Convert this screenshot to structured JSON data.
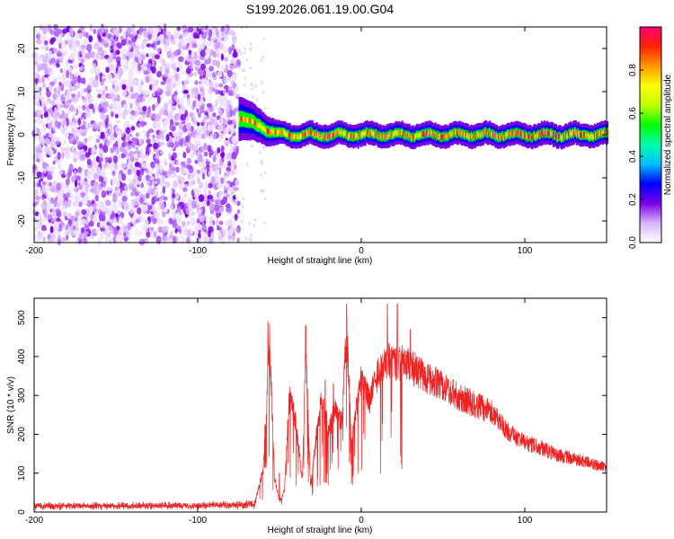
{
  "title": "S199.2026.061.19.00.G04",
  "chart_data": [
    {
      "type": "heatmap",
      "name": "spectrogram",
      "xlabel": "Height of straight line (km)",
      "ylabel": "Frequency (Hz)",
      "xlim": [
        -200,
        150
      ],
      "ylim": [
        -25,
        25
      ],
      "xticks": [
        -200,
        -100,
        0,
        100
      ],
      "xtick_labels": [
        "-200",
        "-100",
        "0",
        "100"
      ],
      "yticks": [
        20,
        10,
        0,
        -10,
        -20
      ],
      "ytick_labels": [
        "20",
        "10",
        "0",
        "-10",
        "-20"
      ],
      "noise_region_km": [
        -200,
        -75
      ],
      "signal_start_km": -75,
      "signal_frequency_hz": 0,
      "signal_start_offset_hz": 4,
      "colorbar": {
        "label": "Normalized spectral amplitude",
        "range": [
          0.0,
          1.0
        ],
        "ticks": [
          "0.0",
          "0.2",
          "0.4",
          "0.6",
          "0.8"
        ],
        "colors": [
          "#ffffff",
          "#d9b3ff",
          "#7a00e6",
          "#0000ff",
          "#00bfff",
          "#00ffaa",
          "#00ff00",
          "#bfff00",
          "#ffff00",
          "#ff9900",
          "#ff2200",
          "#ff0077"
        ]
      }
    },
    {
      "type": "line",
      "name": "snr",
      "xlabel": "Height of straight line (km)",
      "ylabel": "SNR (10 * v/v)",
      "xlim": [
        -200,
        150
      ],
      "ylim": [
        0,
        550
      ],
      "xticks": [
        -200,
        -100,
        0,
        100
      ],
      "xtick_labels": [
        "-200",
        "-100",
        "0",
        "100"
      ],
      "yticks": [
        0,
        100,
        200,
        300,
        400,
        500
      ],
      "ytick_labels": [
        "0",
        "100",
        "200",
        "300",
        "400",
        "500"
      ],
      "color": "#ee2222",
      "series": [
        {
          "name": "SNR",
          "envelope": [
            [
              -200,
              20
            ],
            [
              -170,
              22
            ],
            [
              -140,
              23
            ],
            [
              -110,
              22
            ],
            [
              -80,
              24
            ],
            [
              -65,
              28
            ],
            [
              -60,
              120
            ],
            [
              -56,
              490
            ],
            [
              -53,
              100
            ],
            [
              -50,
              30
            ],
            [
              -47,
              60
            ],
            [
              -44,
              330
            ],
            [
              -40,
              260
            ],
            [
              -36,
              90
            ],
            [
              -34,
              480
            ],
            [
              -31,
              70
            ],
            [
              -28,
              200
            ],
            [
              -24,
              330
            ],
            [
              -20,
              230
            ],
            [
              -16,
              300
            ],
            [
              -12,
              260
            ],
            [
              -9,
              530
            ],
            [
              -6,
              200
            ],
            [
              -3,
              310
            ],
            [
              0,
              380
            ],
            [
              5,
              320
            ],
            [
              10,
              400
            ],
            [
              15,
              440
            ],
            [
              20,
              430
            ],
            [
              25,
              430
            ],
            [
              30,
              420
            ],
            [
              40,
              390
            ],
            [
              50,
              360
            ],
            [
              60,
              330
            ],
            [
              70,
              310
            ],
            [
              80,
              290
            ],
            [
              90,
              230
            ],
            [
              100,
              200
            ],
            [
              110,
              185
            ],
            [
              120,
              165
            ],
            [
              130,
              155
            ],
            [
              140,
              140
            ],
            [
              150,
              130
            ]
          ],
          "spikes": [
            [
              -57,
              490
            ],
            [
              -50,
              100
            ],
            [
              -34,
              480
            ],
            [
              -22,
              340
            ],
            [
              -17,
              330
            ],
            [
              -9,
              535
            ],
            [
              13,
              520
            ],
            [
              16,
              535
            ],
            [
              22,
              535
            ],
            [
              30,
              470
            ]
          ]
        }
      ]
    }
  ]
}
